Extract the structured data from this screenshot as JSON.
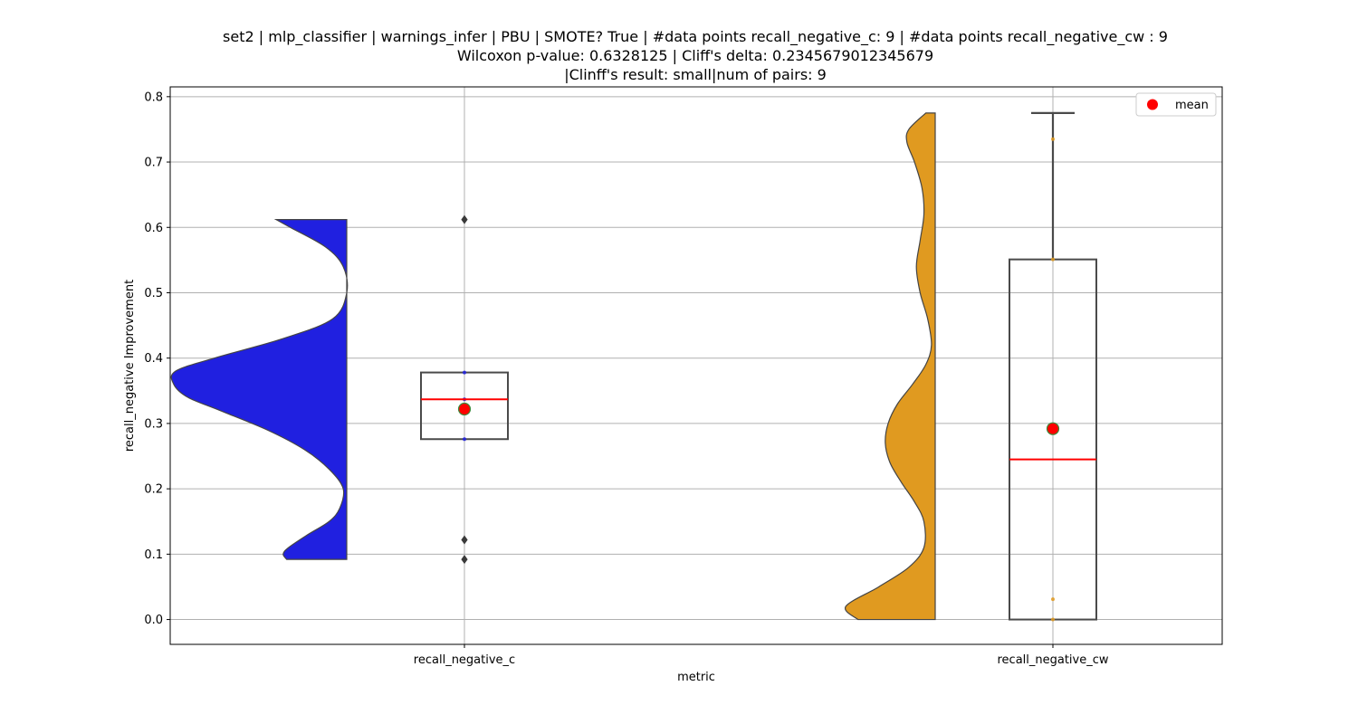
{
  "chart_data": {
    "type": "violin+box",
    "title_lines": [
      "set2 | mlp_classifier | warnings_infer | PBU | SMOTE? True | #data points recall_negative_c: 9 | #data points recall_negative_cw : 9",
      "Wilcoxon p-value: 0.6328125 | Cliff's delta: 0.2345679012345679",
      "|Clinff's result: small|num of pairs: 9"
    ],
    "xlabel": "metric",
    "ylabel": "recall_negative Improvement",
    "categories": [
      "recall_negative_c",
      "recall_negative_cw"
    ],
    "ylim": [
      -0.038,
      0.815
    ],
    "yticks": [
      0.0,
      0.1,
      0.2,
      0.3,
      0.4,
      0.5,
      0.6,
      0.7,
      0.8
    ],
    "ytick_labels": [
      "0.0",
      "0.1",
      "0.2",
      "0.3",
      "0.4",
      "0.5",
      "0.6",
      "0.7",
      "0.8"
    ],
    "grid": true,
    "legend": {
      "position": "top-right",
      "entries": [
        {
          "label": "mean",
          "marker": "red-circle"
        }
      ]
    },
    "colors": {
      "violin_c": "#2020e0",
      "violin_cw": "#e09a20",
      "box_edge": "#4a4a4a",
      "median": "#ff0000",
      "mean_fill": "#ff0000",
      "mean_edge": "#3d8a3d",
      "grid": "#b0b0b0"
    },
    "series": [
      {
        "name": "recall_negative_c",
        "violin": {
          "min": 0.092,
          "max": 0.612,
          "density": [
            [
              0.092,
              0.34
            ],
            [
              0.1,
              0.36
            ],
            [
              0.11,
              0.33
            ],
            [
              0.13,
              0.22
            ],
            [
              0.15,
              0.1
            ],
            [
              0.17,
              0.04
            ],
            [
              0.2,
              0.02
            ],
            [
              0.23,
              0.1
            ],
            [
              0.26,
              0.24
            ],
            [
              0.29,
              0.45
            ],
            [
              0.32,
              0.72
            ],
            [
              0.34,
              0.9
            ],
            [
              0.36,
              0.98
            ],
            [
              0.38,
              0.97
            ],
            [
              0.4,
              0.75
            ],
            [
              0.43,
              0.36
            ],
            [
              0.46,
              0.08
            ],
            [
              0.5,
              0.0
            ],
            [
              0.54,
              0.02
            ],
            [
              0.57,
              0.12
            ],
            [
              0.6,
              0.32
            ],
            [
              0.612,
              0.4
            ]
          ]
        },
        "box": {
          "q1": 0.276,
          "median": 0.337,
          "q3": 0.378,
          "whisker_low": null,
          "whisker_high": null
        },
        "outliers": [
          0.612,
          0.122,
          0.092
        ],
        "points": [
          0.378,
          0.337,
          0.276
        ],
        "mean": 0.322
      },
      {
        "name": "recall_negative_cw",
        "violin": {
          "min": 0.0,
          "max": 0.775,
          "density": [
            [
              0.0,
              0.82
            ],
            [
              0.02,
              0.95
            ],
            [
              0.05,
              0.6
            ],
            [
              0.08,
              0.28
            ],
            [
              0.11,
              0.12
            ],
            [
              0.15,
              0.12
            ],
            [
              0.18,
              0.22
            ],
            [
              0.21,
              0.36
            ],
            [
              0.24,
              0.48
            ],
            [
              0.27,
              0.53
            ],
            [
              0.3,
              0.5
            ],
            [
              0.33,
              0.4
            ],
            [
              0.36,
              0.24
            ],
            [
              0.39,
              0.1
            ],
            [
              0.42,
              0.04
            ],
            [
              0.46,
              0.08
            ],
            [
              0.5,
              0.16
            ],
            [
              0.54,
              0.2
            ],
            [
              0.58,
              0.16
            ],
            [
              0.62,
              0.12
            ],
            [
              0.66,
              0.14
            ],
            [
              0.7,
              0.22
            ],
            [
              0.73,
              0.3
            ],
            [
              0.75,
              0.28
            ],
            [
              0.775,
              0.1
            ]
          ]
        },
        "box": {
          "q1": 0.0,
          "median": 0.245,
          "q3": 0.551,
          "whisker_low": 0.0,
          "whisker_high": 0.775
        },
        "outliers": [],
        "points": [
          0.735,
          0.551,
          0.031,
          0.0
        ],
        "mean": 0.292
      }
    ]
  }
}
